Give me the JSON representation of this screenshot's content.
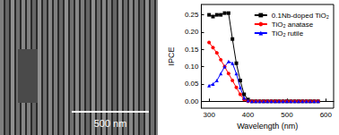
{
  "micrograph": {
    "scale_bar": "500 nm"
  },
  "chart_data": {
    "type": "line",
    "x_label": "Wavelength (nm)",
    "y_label": "IPCE",
    "x": [
      300,
      310,
      320,
      330,
      340,
      350,
      360,
      370,
      380,
      390,
      400,
      410,
      420,
      430,
      440,
      450,
      460,
      470,
      480,
      490,
      500,
      510,
      520,
      530,
      540,
      550,
      560,
      570,
      580
    ],
    "series": [
      {
        "name": "0.1Nb-doped TiO₂",
        "color": "#000000",
        "marker": "square",
        "line_style": "solid",
        "values": [
          0.25,
          0.245,
          0.25,
          0.25,
          0.255,
          0.255,
          0.18,
          0.11,
          0.06,
          0.02,
          0.005,
          0,
          0,
          0,
          0,
          0,
          0,
          0,
          0,
          0,
          0,
          0,
          0,
          0,
          0,
          0,
          0,
          0,
          0
        ]
      },
      {
        "name": "TiO₂ anatase",
        "color": "#ff0000",
        "marker": "circle",
        "line_style": "solid",
        "values": [
          0.17,
          0.155,
          0.14,
          0.12,
          0.1,
          0.08,
          0.06,
          0.04,
          0.02,
          0.005,
          0,
          0,
          0,
          0,
          0,
          0,
          0,
          0,
          0,
          0,
          0,
          0,
          0,
          0,
          0,
          0,
          0,
          0,
          0
        ]
      },
      {
        "name": "TiO₂ rutile",
        "color": "#0000ff",
        "marker": "triangle",
        "line_style": "solid",
        "values": [
          0.045,
          0.05,
          0.06,
          0.08,
          0.1,
          0.115,
          0.11,
          0.08,
          0.04,
          0.01,
          0.002,
          0,
          0,
          0,
          0,
          0,
          0,
          0,
          0,
          0,
          0,
          0,
          0,
          0,
          0,
          0,
          0,
          0,
          0
        ]
      }
    ],
    "xlim": [
      280,
      620
    ],
    "xticks": [
      300,
      400,
      500,
      600
    ],
    "ylim": [
      -0.02,
      0.28
    ],
    "yticks": [
      {
        "value": 0,
        "label": "0.00"
      },
      {
        "value": 0.05,
        "label": "0.05"
      },
      {
        "value": 0.1,
        "label": "0.10"
      },
      {
        "value": 0.15,
        "label": "0.15"
      },
      {
        "value": 0.2,
        "label": "0.20"
      },
      {
        "value": 0.25,
        "label": "0.25"
      }
    ],
    "grid": false,
    "legend": "upper right"
  }
}
